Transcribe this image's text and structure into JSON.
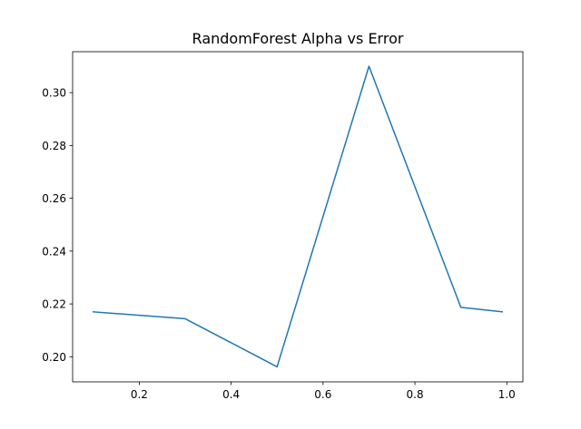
{
  "chart_data": {
    "type": "line",
    "title": "RandomForest Alpha vs Error",
    "xlabel": "",
    "ylabel": "",
    "xlim": [
      0.055,
      1.035
    ],
    "ylim": [
      0.1905,
      0.3155
    ],
    "grid": false,
    "x_ticks": [
      0.2,
      0.4,
      0.6,
      0.8,
      1.0
    ],
    "x_tick_labels": [
      "0.2",
      "0.4",
      "0.6",
      "0.8",
      "1.0"
    ],
    "y_ticks": [
      0.2,
      0.22,
      0.24,
      0.26,
      0.28,
      0.3
    ],
    "y_tick_labels": [
      "0.20",
      "0.22",
      "0.24",
      "0.26",
      "0.28",
      "0.30"
    ],
    "series": [
      {
        "color": "#1f77b4",
        "x": [
          0.1,
          0.3,
          0.5,
          0.7,
          0.9,
          0.99
        ],
        "y": [
          0.217,
          0.2144,
          0.1962,
          0.31,
          0.2187,
          0.217
        ]
      }
    ]
  }
}
